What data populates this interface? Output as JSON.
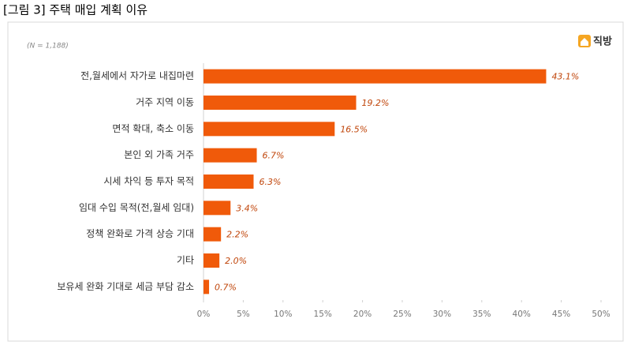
{
  "chart_data": {
    "type": "bar",
    "orientation": "horizontal",
    "title": "[그림 3] 주택 매입 계획 이유",
    "note": "(N = 1,188)",
    "brand": "직방",
    "categories": [
      "전,월세에서 자가로 내집마련",
      "거주 지역 이동",
      "면적 확대, 축소 이동",
      "본인 외 가족 거주",
      "시세 차익 등 투자 목적",
      "임대 수입 목적(전,월세 임대)",
      "정책 완화로 가격 상승 기대",
      "기타",
      "보유세 완화 기대로 세금 부담 감소"
    ],
    "values": [
      43.1,
      19.2,
      16.5,
      6.7,
      6.3,
      3.4,
      2.2,
      2.0,
      0.7
    ],
    "value_labels": [
      "43.1%",
      "19.2%",
      "16.5%",
      "6.7%",
      "6.3%",
      "3.4%",
      "2.2%",
      "2.0%",
      "0.7%"
    ],
    "color": "#f05a0a",
    "xlim": [
      0,
      50
    ],
    "xticks": [
      {
        "value": 0,
        "label": "0%"
      },
      {
        "value": 5,
        "label": "5%"
      },
      {
        "value": 10,
        "label": "10%"
      },
      {
        "value": 15,
        "label": "15%"
      },
      {
        "value": 20,
        "label": "20%"
      },
      {
        "value": 25,
        "label": "25%"
      },
      {
        "value": 30,
        "label": "30%"
      },
      {
        "value": 35,
        "label": "35%"
      },
      {
        "value": 40,
        "label": "40%"
      },
      {
        "value": 45,
        "label": "45%"
      },
      {
        "value": 50,
        "label": "50%"
      }
    ],
    "grid": false
  }
}
